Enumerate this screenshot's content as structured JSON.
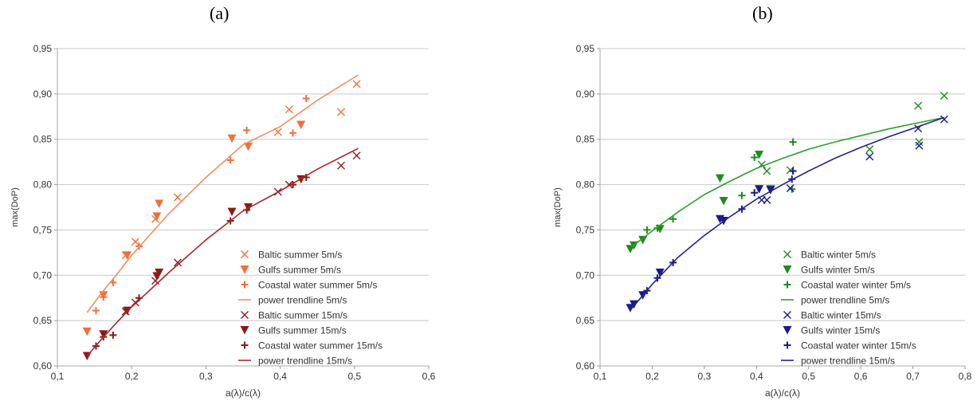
{
  "chart_data": [
    {
      "panel_label": "(a)",
      "type": "scatter",
      "xlabel": "a(λ)/c(λ)",
      "ylabel": "max(DoP)",
      "xlim": [
        0.1,
        0.6
      ],
      "ylim": [
        0.6,
        0.95
      ],
      "x_ticks": [
        "0,1",
        "0,2",
        "0,3",
        "0,4",
        "0,5",
        "0,6"
      ],
      "y_ticks": [
        "0,60",
        "0,65",
        "0,70",
        "0,75",
        "0,80",
        "0,85",
        "0,90",
        "0,95"
      ],
      "legend_position": "bottom-right",
      "series": [
        {
          "name": "Baltic summer 5m/s",
          "marker": "x",
          "color": "#f0703a",
          "points": [
            [
              0.192,
              0.722
            ],
            [
              0.205,
              0.737
            ],
            [
              0.232,
              0.762
            ],
            [
              0.262,
              0.786
            ],
            [
              0.397,
              0.858
            ],
            [
              0.412,
              0.883
            ],
            [
              0.482,
              0.88
            ],
            [
              0.503,
              0.911
            ]
          ]
        },
        {
          "name": "Gulfs summer 5m/s",
          "marker": "triangle-down",
          "color": "#f0703a",
          "points": [
            [
              0.14,
              0.638
            ],
            [
              0.162,
              0.678
            ],
            [
              0.194,
              0.722
            ],
            [
              0.234,
              0.765
            ],
            [
              0.237,
              0.779
            ],
            [
              0.335,
              0.851
            ],
            [
              0.357,
              0.842
            ],
            [
              0.428,
              0.866
            ]
          ]
        },
        {
          "name": "Coastal water summer 5m/s",
          "marker": "plus",
          "color": "#f0703a",
          "points": [
            [
              0.152,
              0.661
            ],
            [
              0.162,
              0.676
            ],
            [
              0.175,
              0.692
            ],
            [
              0.21,
              0.732
            ],
            [
              0.333,
              0.827
            ],
            [
              0.355,
              0.86
            ],
            [
              0.417,
              0.857
            ],
            [
              0.435,
              0.895
            ]
          ]
        },
        {
          "name": "power trendline 5m/s",
          "marker": "line",
          "color": "#f58d5e",
          "points": [
            [
              0.14,
              0.659
            ],
            [
              0.16,
              0.681
            ],
            [
              0.18,
              0.701
            ],
            [
              0.2,
              0.722
            ],
            [
              0.25,
              0.768
            ],
            [
              0.3,
              0.808
            ],
            [
              0.35,
              0.844
            ],
            [
              0.4,
              0.864
            ],
            [
              0.45,
              0.893
            ],
            [
              0.505,
              0.921
            ]
          ]
        },
        {
          "name": "Baltic summer 15m/s",
          "marker": "x",
          "color": "#8b1a1a",
          "points": [
            [
              0.192,
              0.66
            ],
            [
              0.205,
              0.67
            ],
            [
              0.232,
              0.694
            ],
            [
              0.262,
              0.714
            ],
            [
              0.397,
              0.792
            ],
            [
              0.412,
              0.8
            ],
            [
              0.482,
              0.821
            ],
            [
              0.503,
              0.832
            ]
          ]
        },
        {
          "name": "Gulfs summer 15m/s",
          "marker": "triangle-down",
          "color": "#8b1a1a",
          "points": [
            [
              0.14,
              0.611
            ],
            [
              0.162,
              0.635
            ],
            [
              0.194,
              0.661
            ],
            [
              0.234,
              0.699
            ],
            [
              0.237,
              0.703
            ],
            [
              0.335,
              0.77
            ],
            [
              0.357,
              0.775
            ],
            [
              0.428,
              0.806
            ]
          ]
        },
        {
          "name": "Coastal water summer 15m/s",
          "marker": "plus",
          "color": "#8b1a1a",
          "points": [
            [
              0.152,
              0.622
            ],
            [
              0.162,
              0.632
            ],
            [
              0.175,
              0.634
            ],
            [
              0.21,
              0.675
            ],
            [
              0.333,
              0.76
            ],
            [
              0.355,
              0.772
            ],
            [
              0.417,
              0.8
            ],
            [
              0.435,
              0.808
            ]
          ]
        },
        {
          "name": "power trendline 15m/s",
          "marker": "line",
          "color": "#a52a2a",
          "points": [
            [
              0.14,
              0.611
            ],
            [
              0.16,
              0.63
            ],
            [
              0.18,
              0.648
            ],
            [
              0.2,
              0.665
            ],
            [
              0.25,
              0.703
            ],
            [
              0.3,
              0.739
            ],
            [
              0.35,
              0.771
            ],
            [
              0.4,
              0.793
            ],
            [
              0.45,
              0.817
            ],
            [
              0.505,
              0.84
            ]
          ]
        }
      ]
    },
    {
      "panel_label": "(b)",
      "type": "scatter",
      "xlabel": "a(λ)/c(λ)",
      "ylabel": "max(DoP)",
      "xlim": [
        0.1,
        0.8
      ],
      "ylim": [
        0.6,
        0.95
      ],
      "x_ticks": [
        "0,1",
        "0,2",
        "0,3",
        "0,4",
        "0,5",
        "0,6",
        "0,7",
        "0,8"
      ],
      "y_ticks": [
        "0,60",
        "0,65",
        "0,70",
        "0,75",
        "0,80",
        "0,85",
        "0,90",
        "0,95"
      ],
      "legend_position": "bottom-right",
      "series": [
        {
          "name": "Baltic winter 5m/s",
          "marker": "x",
          "color": "#1f8a1f",
          "points": [
            [
              0.41,
              0.822
            ],
            [
              0.42,
              0.815
            ],
            [
              0.465,
              0.816
            ],
            [
              0.617,
              0.839
            ],
            [
              0.71,
              0.887
            ],
            [
              0.712,
              0.847
            ],
            [
              0.76,
              0.898
            ]
          ]
        },
        {
          "name": "Gulfs winter 5m/s",
          "marker": "triangle-down",
          "color": "#1f8a1f",
          "points": [
            [
              0.158,
              0.729
            ],
            [
              0.165,
              0.733
            ],
            [
              0.182,
              0.739
            ],
            [
              0.215,
              0.751
            ],
            [
              0.33,
              0.807
            ],
            [
              0.337,
              0.782
            ],
            [
              0.405,
              0.833
            ],
            [
              0.427,
              0.795
            ]
          ]
        },
        {
          "name": "Coastal water winter 5m/s",
          "marker": "plus",
          "color": "#1f8a1f",
          "points": [
            [
              0.19,
              0.75
            ],
            [
              0.21,
              0.752
            ],
            [
              0.24,
              0.762
            ],
            [
              0.372,
              0.788
            ],
            [
              0.396,
              0.83
            ],
            [
              0.468,
              0.795
            ],
            [
              0.47,
              0.847
            ]
          ]
        },
        {
          "name": "power trendline 5m/s",
          "marker": "line",
          "color": "#2ca02c",
          "points": [
            [
              0.16,
              0.731
            ],
            [
              0.2,
              0.749
            ],
            [
              0.25,
              0.77
            ],
            [
              0.3,
              0.789
            ],
            [
              0.35,
              0.804
            ],
            [
              0.4,
              0.818
            ],
            [
              0.45,
              0.829
            ],
            [
              0.5,
              0.839
            ],
            [
              0.55,
              0.847
            ],
            [
              0.6,
              0.854
            ],
            [
              0.65,
              0.861
            ],
            [
              0.7,
              0.867
            ],
            [
              0.76,
              0.874
            ]
          ]
        },
        {
          "name": "Baltic winter 15m/s",
          "marker": "x",
          "color": "#1a1a8b",
          "points": [
            [
              0.41,
              0.783
            ],
            [
              0.42,
              0.783
            ],
            [
              0.465,
              0.796
            ],
            [
              0.617,
              0.831
            ],
            [
              0.71,
              0.862
            ],
            [
              0.712,
              0.843
            ],
            [
              0.76,
              0.872
            ]
          ]
        },
        {
          "name": "Gulfs winter 15m/s",
          "marker": "triangle-down",
          "color": "#1a1a8b",
          "points": [
            [
              0.158,
              0.664
            ],
            [
              0.165,
              0.668
            ],
            [
              0.182,
              0.678
            ],
            [
              0.215,
              0.703
            ],
            [
              0.33,
              0.762
            ],
            [
              0.337,
              0.76
            ],
            [
              0.405,
              0.795
            ],
            [
              0.427,
              0.794
            ]
          ]
        },
        {
          "name": "Coastal water winter 15m/s",
          "marker": "plus",
          "color": "#1a1a8b",
          "points": [
            [
              0.19,
              0.683
            ],
            [
              0.21,
              0.697
            ],
            [
              0.24,
              0.714
            ],
            [
              0.372,
              0.773
            ],
            [
              0.396,
              0.791
            ],
            [
              0.468,
              0.806
            ],
            [
              0.47,
              0.815
            ]
          ]
        },
        {
          "name": "power trendline 15m/s",
          "marker": "line",
          "color": "#23238f",
          "points": [
            [
              0.16,
              0.663
            ],
            [
              0.2,
              0.69
            ],
            [
              0.25,
              0.72
            ],
            [
              0.3,
              0.744
            ],
            [
              0.35,
              0.765
            ],
            [
              0.4,
              0.784
            ],
            [
              0.45,
              0.8
            ],
            [
              0.5,
              0.815
            ],
            [
              0.55,
              0.829
            ],
            [
              0.6,
              0.841
            ],
            [
              0.65,
              0.852
            ],
            [
              0.7,
              0.862
            ],
            [
              0.76,
              0.874
            ]
          ]
        }
      ]
    }
  ]
}
